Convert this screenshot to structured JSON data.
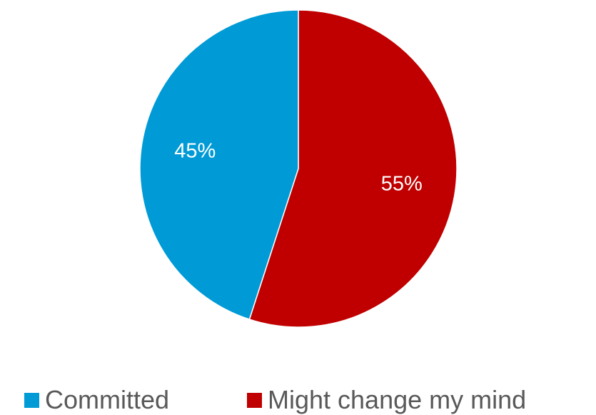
{
  "chart_data": {
    "type": "pie",
    "title": "",
    "categories": [
      "Committed",
      "Might change my mind"
    ],
    "values": [
      45,
      55
    ],
    "value_labels": [
      "45%",
      "55%"
    ],
    "colors": [
      "#009BD6",
      "#C00000"
    ],
    "legend_position": "bottom",
    "start_angle": "12 o'clock",
    "direction": "clockwise, starting with Might change my mind"
  },
  "legend": {
    "items": [
      {
        "label": "Committed",
        "color": "#009BD6"
      },
      {
        "label": "Might change my mind",
        "color": "#C00000"
      }
    ]
  }
}
